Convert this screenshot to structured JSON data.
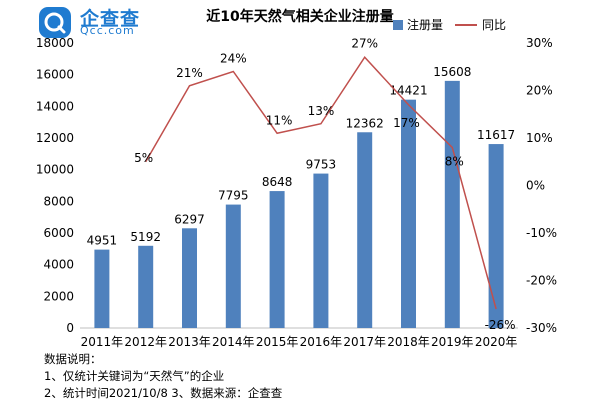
{
  "logo": {
    "name": "企查查",
    "sub": "Qcc.com"
  },
  "chart_data": {
    "type": "bar+line",
    "title": "近10年天然气相关企业注册量",
    "categories": [
      "2011年",
      "2012年",
      "2013年",
      "2014年",
      "2015年",
      "2016年",
      "2017年",
      "2018年",
      "2019年",
      "2020年"
    ],
    "series": [
      {
        "name": "注册量",
        "type": "bar",
        "axis": "left",
        "values": [
          4951,
          5192,
          6297,
          7795,
          8648,
          9753,
          12362,
          14421,
          15608,
          11617
        ],
        "labels": [
          "4951",
          "5192",
          "6297",
          "7795",
          "8648",
          "9753",
          "12362",
          "14421",
          "15608",
          "11617"
        ]
      },
      {
        "name": "同比",
        "type": "line",
        "axis": "right",
        "values": [
          null,
          5,
          21,
          24,
          11,
          13,
          27,
          17,
          8,
          -26
        ],
        "labels": [
          "",
          "5%",
          "21%",
          "24%",
          "11%",
          "13%",
          "27%",
          "17%",
          "8%",
          "-26%"
        ]
      }
    ],
    "y_left": {
      "range": [
        0,
        18000
      ],
      "ticks": [
        "0",
        "2000",
        "4000",
        "6000",
        "8000",
        "10000",
        "12000",
        "14000",
        "16000",
        "18000"
      ]
    },
    "y_right": {
      "range": [
        -30,
        30
      ],
      "ticks": [
        "-30%",
        "-20%",
        "-10%",
        "0%",
        "10%",
        "20%",
        "30%"
      ]
    },
    "legend": {
      "position": "top-right",
      "items": [
        "注册量",
        "同比"
      ]
    },
    "colors": {
      "bar": "#4f81bd",
      "line": "#c0504d"
    }
  },
  "notes": {
    "heading": "数据说明：",
    "line1": "1、仅统计关键词为“天然气”的企业",
    "line2": "2、统计时间2021/10/8   3、数据来源：企查查"
  }
}
